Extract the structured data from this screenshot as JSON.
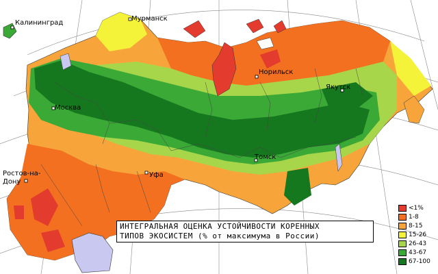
{
  "map": {
    "title_lines": [
      "ИНТЕГРАЛЬНАЯ ОЦЕНКА УСТОЙЧИВОСТИ КОРЕННЫХ",
      "ТИПОВ ЭКОСИСТЕМ (% от максимума в России)"
    ],
    "cities": [
      {
        "key": "kaliningrad",
        "label": "Калининград"
      },
      {
        "key": "murmansk",
        "label": "Мурманск"
      },
      {
        "key": "moskva",
        "label": "Москва"
      },
      {
        "key": "norilsk",
        "label": "Норильск"
      },
      {
        "key": "yakutsk",
        "label": "Якутск"
      },
      {
        "key": "tomsk",
        "label": "Томск"
      },
      {
        "key": "ufa",
        "label": "Уфа"
      },
      {
        "key": "rostov1",
        "label": "Ростов-на-"
      },
      {
        "key": "rostov2",
        "label": "Дону"
      }
    ],
    "legend": [
      {
        "label": "<1%",
        "color": "#e33b2e"
      },
      {
        "label": "1-8",
        "color": "#f2701f"
      },
      {
        "label": "8-15",
        "color": "#f7a53a"
      },
      {
        "label": "15-26",
        "color": "#f5f23a"
      },
      {
        "label": "26-43",
        "color": "#a8d64a"
      },
      {
        "label": "43-67",
        "color": "#3aa936"
      },
      {
        "label": "67-100",
        "color": "#16781e"
      }
    ]
  }
}
